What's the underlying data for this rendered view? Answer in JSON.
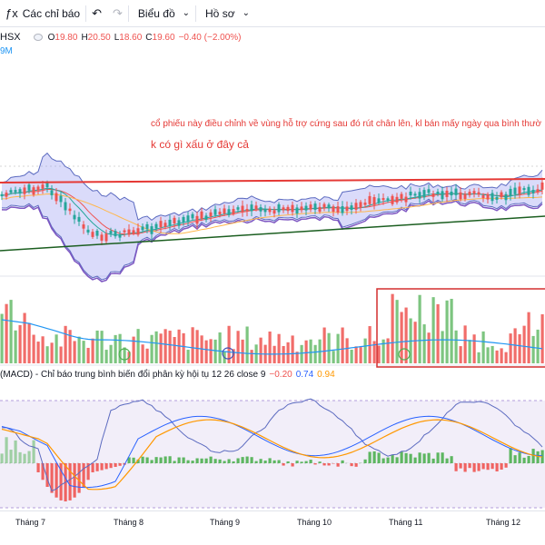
{
  "toolbar": {
    "indicators_label": "Các chỉ báo",
    "chart_label": "Biểu đồ",
    "profile_label": "Hồ sơ"
  },
  "legend": {
    "symbol": "HSX",
    "o_prefix": "O",
    "o": "19.80",
    "h_prefix": "H",
    "h": "20.50",
    "l_prefix": "L",
    "l": "18.60",
    "c_prefix": "C",
    "c": "19.60",
    "change": "−0.40 (−2.00%)",
    "volume_fragment": "9M"
  },
  "annotations": {
    "line1": "cổ phiếu này điều chỉnh về vùng hỗ trợ cứng sau đó rút chân lên, kl bán mấy ngày qua bình thườ",
    "line2": "k có gì xấu ở đây cả"
  },
  "macd": {
    "title": "(MACD) - Chỉ báo trung bình biến đổi phân kỳ hội tụ 12 26 close 9",
    "hist": "−0.20",
    "macd": "0.74",
    "signal": "0.94"
  },
  "time_axis": [
    "Tháng 7",
    "Tháng 8",
    "Tháng 9",
    "Tháng 10",
    "Tháng 11",
    "Tháng 12"
  ],
  "colors": {
    "up": "#26a69a",
    "down": "#ef5350",
    "annotation": "#e53935",
    "bollinger_fill": "#9598f0",
    "macd_line": "#2962ff",
    "signal_line": "#ff9800"
  }
}
